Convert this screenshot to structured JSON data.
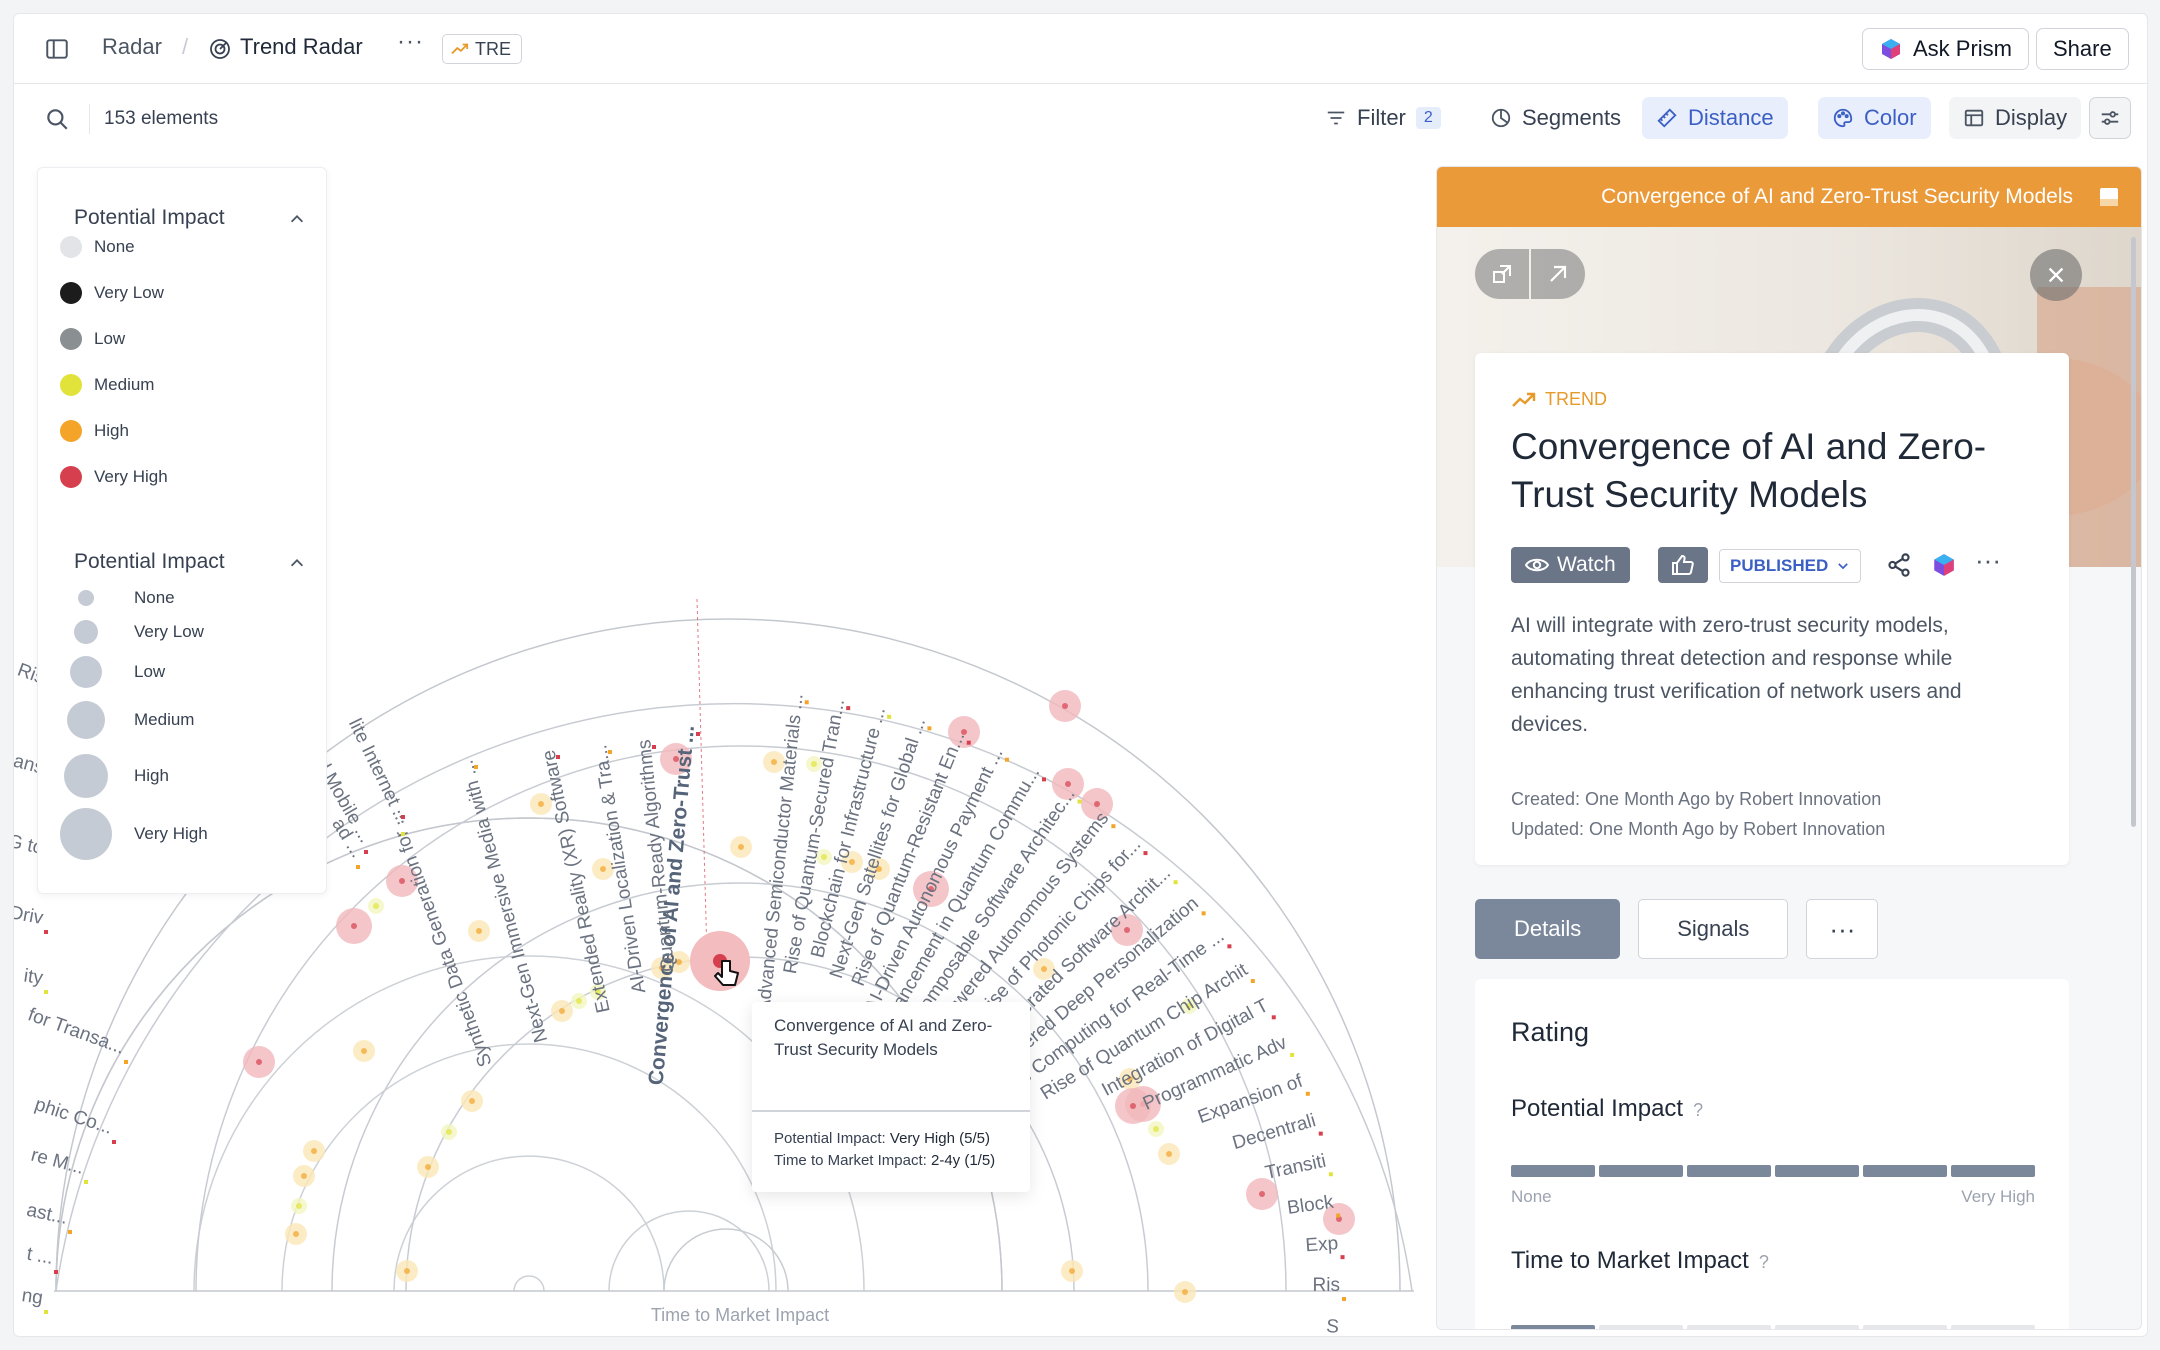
{
  "topbar": {
    "breadcrumb_root": "Radar",
    "breadcrumb_current": "Trend Radar",
    "badge_label": "TRE",
    "ask_label": "Ask Prism",
    "share_label": "Share"
  },
  "toolbar": {
    "elements_count": "153 elements",
    "filter_label": "Filter",
    "filter_count": "2",
    "segments_label": "Segments",
    "distance_label": "Distance",
    "color_label": "Color",
    "display_label": "Display"
  },
  "legend": {
    "color_title": "Potential Impact",
    "color_items": [
      {
        "label": "None",
        "color": "#e2e4e7"
      },
      {
        "label": "Very Low",
        "color": "#1c1c1c"
      },
      {
        "label": "Low",
        "color": "#8a8f91"
      },
      {
        "label": "Medium",
        "color": "#e2e33a"
      },
      {
        "label": "High",
        "color": "#f4a429"
      },
      {
        "label": "Very High",
        "color": "#d6404e"
      }
    ],
    "size_title": "Potential Impact",
    "size_items": [
      {
        "label": "None"
      },
      {
        "label": "Very Low"
      },
      {
        "label": "Low"
      },
      {
        "label": "Medium"
      },
      {
        "label": "High"
      },
      {
        "label": "Very High"
      }
    ]
  },
  "radar": {
    "axis_label": "Time to Market Impact",
    "highlighted_label": "Convergence of AI and Zero-Trust ...",
    "labels_left": [
      "Synthetic Data Generation for ...",
      "Next-Gen Immersive Media with ...",
      "Extended Reality (XR) Software",
      "AI-Driven Localization & Tra...",
      "Quantum-Ready Algorithms"
    ],
    "labels_right": [
      "Advanced Semiconductor Materials ...",
      "Rise of Quantum-Secured Tran...",
      "Blockchain for Infrastructure ...",
      "Next-Gen Satellites for Global ...",
      "Rise of Quantum-Resistant En...",
      "AI-Driven Autonomous Payment ...",
      "Advancement in Quantum Commu...",
      "Composable Software Architec...",
      "AI-Powered Autonomous Systems",
      "Rise of Photonic Chips for...",
      "AI-Generated Software Archit...",
      "AI-Powered Deep Personalization",
      "Edge Computing for Real-Time ...",
      "Rise of Quantum Chip Archit",
      "Integration of Digital T",
      "Programmatic Adv",
      "Expansion of",
      "Decentrali",
      "Transiti",
      "Block",
      "Exp",
      "Ris",
      "S"
    ],
    "labels_clipped": [
      "of 5G-Enhanced Mobile ...",
      "lite Internet ...",
      "ad ...",
      "Ris",
      "ans",
      "G to",
      "Driv",
      "ity",
      "for Transa...",
      "phic Co...",
      "re M...",
      "ast...",
      "t ...",
      "ng"
    ]
  },
  "tooltip": {
    "title": "Convergence of AI and Zero-Trust Security Models",
    "impact_label": "Potential Impact:",
    "impact_value": "Very High (5/5)",
    "ttm_label": "Time to Market Impact:",
    "ttm_value": "2-4y (1/5)"
  },
  "panel": {
    "header_title": "Convergence of AI and Zero-Trust Security Models",
    "type_label": "TREND",
    "title": "Convergence of AI and Zero-Trust Security Models",
    "watch_label": "Watch",
    "status_label": "PUBLISHED",
    "description": "AI will integrate with zero-trust security models, automating threat detection and response while enhancing trust verification of network users and devices.",
    "created": "Created: One Month Ago by Robert Innovation",
    "updated": "Updated: One Month Ago by Robert Innovation",
    "tabs": [
      "Details",
      "Signals"
    ],
    "rating_title": "Rating",
    "potential_impact_title": "Potential Impact",
    "potential_impact_level": 5,
    "potential_impact_max": 5,
    "scale_min": "None",
    "scale_max": "Very High",
    "ttm_title": "Time to Market Impact",
    "help_mark": "?",
    "accent_color": "#eb9a3a"
  }
}
